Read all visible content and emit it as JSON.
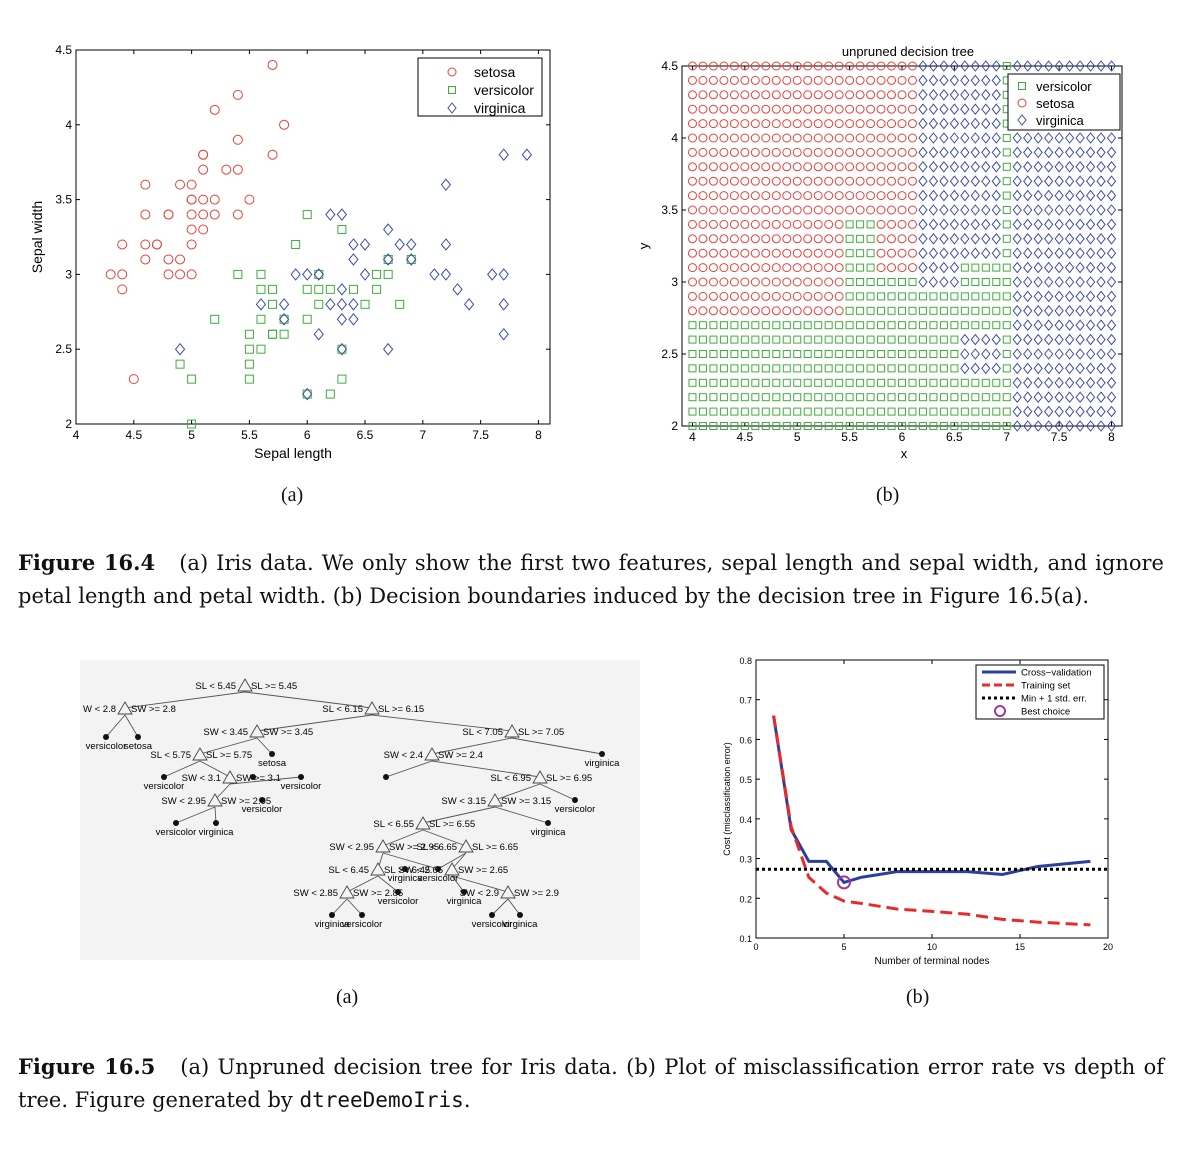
{
  "figure_16_4": {
    "panel_a": {
      "sublabel": "(a)",
      "legend": [
        "setosa",
        "versicolor",
        "virginica"
      ]
    },
    "panel_b": {
      "sublabel": "(b)",
      "legend": [
        "versicolor",
        "setosa",
        "virginica"
      ]
    },
    "caption": {
      "label": "Figure 16.4",
      "text": "(a) Iris data. We only show the first two features, sepal length and sepal width, and ignore petal length and petal width. (b) Decision boundaries induced by the decision tree in Figure 16.5(a)."
    }
  },
  "figure_16_5": {
    "panel_a": {
      "sublabel": "(a)",
      "tree_labels": {
        "n1_left": "SL < 5.45",
        "n1_right": "SL >= 5.45",
        "n2_left": "W < 2.8",
        "n2_right": "SW >= 2.8",
        "n2_leaves": [
          "versicolor",
          "setosa"
        ],
        "n3_left": "SL < 6.15",
        "n3_right": "SL >= 6.15",
        "n4_left": "SW < 3.45",
        "n4_right": "SW >= 3.45",
        "n5_left": "SL < 7.05",
        "n5_right": "SL >= 7.05",
        "n6_left": "SL < 5.75",
        "n6_right": "SL >= 5.75",
        "n7_left": "SW < 2.4",
        "n7_right": "SW >= 2.4",
        "n8_left": "SW < 3.1",
        "n8_right": "SW >= 3.1",
        "n9_left": "SL < 6.95",
        "n9_right": "SL >= 6.95",
        "n10_left": "SW < 2.95",
        "n10_right": "SW >= 2.95",
        "n11_left": "SW < 3.15",
        "n11_right": "SW >= 3.15",
        "n12_left": "SL < 6.55",
        "n12_right": "SL >= 6.55",
        "n13_left": "SW < 2.95",
        "n13_right": "SW >= 2.95",
        "n14_left": "SL < 6.65",
        "n14_right": "SL >= 6.65",
        "n15_left": "SL < 6.45",
        "n15_right": "SL >= 6.45",
        "n16_left": "SW < 2.65",
        "n16_right": "SW >= 2.65",
        "n17_left": "SW < 2.85",
        "n17_right": "SW >= 2.85",
        "n18_left": "SW < 2.9",
        "n18_right": "SW >= 2.9",
        "leaf_setosa": "setosa",
        "leaf_virginica": "virginica",
        "leaf_versicolor": "versicolor"
      }
    },
    "panel_b": {
      "sublabel": "(b)"
    },
    "caption": {
      "label": "Figure 16.5",
      "text_before": "(a) Unpruned decision tree for Iris data. (b) Plot of misclassification error rate vs depth of tree. Figure generated by ",
      "code": "dtreeDemoIris",
      "text_after": "."
    }
  },
  "chart_data": [
    {
      "type": "scatter",
      "title": "",
      "xlabel": "Sepal length",
      "ylabel": "Sepal width",
      "xlim": [
        4,
        8.1
      ],
      "ylim": [
        2,
        4.5
      ],
      "xticks": [
        "4",
        "4.5",
        "5",
        "5.5",
        "6",
        "6.5",
        "7",
        "7.5",
        "8"
      ],
      "yticks": [
        "2",
        "2.5",
        "3",
        "3.5",
        "4",
        "4.5"
      ],
      "grid": false,
      "legend_position": "top-right",
      "colors": {
        "setosa": "#e8413a",
        "versicolor": "#3fae3b",
        "virginica": "#3c4da6"
      },
      "series": [
        {
          "name": "setosa",
          "marker": "circle",
          "points": [
            [
              5.7,
              4.4
            ],
            [
              5.4,
              4.2
            ],
            [
              5.2,
              4.1
            ],
            [
              5.8,
              4.0
            ],
            [
              5.4,
              3.9
            ],
            [
              5.1,
              3.8
            ],
            [
              5.7,
              3.8
            ],
            [
              5.1,
              3.8
            ],
            [
              5.1,
              3.7
            ],
            [
              5.3,
              3.7
            ],
            [
              5.4,
              3.7
            ],
            [
              4.6,
              3.6
            ],
            [
              5.0,
              3.6
            ],
            [
              4.9,
              3.6
            ],
            [
              5.1,
              3.5
            ],
            [
              5.0,
              3.5
            ],
            [
              5.2,
              3.5
            ],
            [
              5.5,
              3.5
            ],
            [
              5.0,
              3.5
            ],
            [
              4.6,
              3.4
            ],
            [
              4.8,
              3.4
            ],
            [
              5.0,
              3.4
            ],
            [
              5.4,
              3.4
            ],
            [
              5.2,
              3.4
            ],
            [
              4.8,
              3.4
            ],
            [
              5.1,
              3.4
            ],
            [
              4.4,
              3.2
            ],
            [
              4.6,
              3.2
            ],
            [
              4.7,
              3.2
            ],
            [
              5.0,
              3.3
            ],
            [
              5.1,
              3.3
            ],
            [
              5.0,
              3.2
            ],
            [
              4.9,
              3.1
            ],
            [
              4.8,
              3.1
            ],
            [
              4.6,
              3.1
            ],
            [
              4.7,
              3.2
            ],
            [
              4.3,
              3.0
            ],
            [
              4.4,
              3.0
            ],
            [
              4.8,
              3.0
            ],
            [
              4.9,
              3.0
            ],
            [
              5.0,
              3.0
            ],
            [
              4.4,
              2.9
            ],
            [
              4.5,
              2.3
            ]
          ]
        },
        {
          "name": "versicolor",
          "marker": "square",
          "points": [
            [
              6.0,
              3.4
            ],
            [
              5.9,
              3.2
            ],
            [
              6.3,
              3.3
            ],
            [
              6.7,
              3.1
            ],
            [
              6.9,
              3.1
            ],
            [
              6.6,
              3.0
            ],
            [
              6.7,
              3.0
            ],
            [
              6.1,
              3.0
            ],
            [
              5.6,
              3.0
            ],
            [
              5.4,
              3.0
            ],
            [
              6.0,
              2.9
            ],
            [
              6.1,
              2.9
            ],
            [
              6.2,
              2.9
            ],
            [
              5.7,
              2.9
            ],
            [
              6.4,
              2.9
            ],
            [
              6.6,
              2.9
            ],
            [
              5.6,
              2.9
            ],
            [
              6.1,
              2.8
            ],
            [
              5.7,
              2.8
            ],
            [
              6.5,
              2.8
            ],
            [
              6.8,
              2.8
            ],
            [
              5.8,
              2.7
            ],
            [
              5.6,
              2.7
            ],
            [
              6.0,
              2.7
            ],
            [
              6.3,
              2.5
            ],
            [
              5.7,
              2.6
            ],
            [
              5.5,
              2.6
            ],
            [
              5.8,
              2.6
            ],
            [
              5.5,
              2.5
            ],
            [
              4.9,
              2.4
            ],
            [
              5.5,
              2.4
            ],
            [
              6.2,
              2.2
            ],
            [
              6.0,
              2.2
            ],
            [
              5.0,
              2.3
            ],
            [
              5.5,
              2.3
            ],
            [
              6.3,
              2.3
            ],
            [
              5.0,
              2.0
            ],
            [
              5.2,
              2.7
            ],
            [
              5.7,
              2.6
            ],
            [
              5.6,
              2.5
            ]
          ]
        },
        {
          "name": "virginica",
          "marker": "diamond",
          "points": [
            [
              7.7,
              3.8
            ],
            [
              7.9,
              3.8
            ],
            [
              7.2,
              3.6
            ],
            [
              6.2,
              3.4
            ],
            [
              6.3,
              3.4
            ],
            [
              7.2,
              3.2
            ],
            [
              6.9,
              3.2
            ],
            [
              6.8,
              3.2
            ],
            [
              6.4,
              3.2
            ],
            [
              6.5,
              3.2
            ],
            [
              6.7,
              3.3
            ],
            [
              6.7,
              3.1
            ],
            [
              6.9,
              3.1
            ],
            [
              6.4,
              3.1
            ],
            [
              7.1,
              3.0
            ],
            [
              7.2,
              3.0
            ],
            [
              7.6,
              3.0
            ],
            [
              7.7,
              3.0
            ],
            [
              6.5,
              3.0
            ],
            [
              5.9,
              3.0
            ],
            [
              6.1,
              3.0
            ],
            [
              6.0,
              3.0
            ],
            [
              7.3,
              2.9
            ],
            [
              6.3,
              2.9
            ],
            [
              7.4,
              2.8
            ],
            [
              7.7,
              2.8
            ],
            [
              6.3,
              2.8
            ],
            [
              6.4,
              2.8
            ],
            [
              5.8,
              2.8
            ],
            [
              6.2,
              2.8
            ],
            [
              5.6,
              2.8
            ],
            [
              6.3,
              2.7
            ],
            [
              6.4,
              2.7
            ],
            [
              5.8,
              2.7
            ],
            [
              6.1,
              2.6
            ],
            [
              7.7,
              2.6
            ],
            [
              6.3,
              2.5
            ],
            [
              6.7,
              2.5
            ],
            [
              4.9,
              2.5
            ],
            [
              6.0,
              2.2
            ]
          ]
        }
      ]
    },
    {
      "type": "scatter",
      "title": "unpruned decision tree",
      "xlabel": "x",
      "ylabel": "y",
      "xlim": [
        3.9,
        8.1
      ],
      "ylim": [
        2,
        4.5
      ],
      "xticks": [
        "4",
        "4.5",
        "5",
        "5.5",
        "6",
        "6.5",
        "7",
        "7.5",
        "8"
      ],
      "yticks": [
        "2",
        "2.5",
        "3",
        "3.5",
        "4",
        "4.5"
      ],
      "grid_step": 0.1,
      "legend_position": "top-right",
      "regions_description": "class predicted at each grid point"
    },
    {
      "type": "line",
      "title": "",
      "xlabel": "Number of terminal nodes",
      "ylabel": "Cost (misclassification error)",
      "xlim": [
        0,
        20
      ],
      "ylim": [
        0.1,
        0.8
      ],
      "xticks": [
        "0",
        "5",
        "10",
        "15",
        "20"
      ],
      "yticks": [
        "0.1",
        "0.2",
        "0.3",
        "0.4",
        "0.5",
        "0.6",
        "0.7",
        "0.8"
      ],
      "legend_position": "top-right",
      "series": [
        {
          "name": "Cross−validation",
          "color": "#2b3f9e",
          "style": "solid",
          "x": [
            1,
            2,
            3,
            4,
            5,
            6,
            7,
            8,
            10,
            12,
            14,
            16,
            19
          ],
          "y": [
            0.66,
            0.373,
            0.293,
            0.293,
            0.24,
            0.253,
            0.26,
            0.267,
            0.267,
            0.267,
            0.26,
            0.28,
            0.293
          ]
        },
        {
          "name": "Training set",
          "color": "#e82a2a",
          "style": "dashed",
          "x": [
            1,
            2,
            3,
            4,
            5,
            6,
            8,
            10,
            12,
            14,
            16,
            19
          ],
          "y": [
            0.66,
            0.38,
            0.253,
            0.213,
            0.193,
            0.187,
            0.173,
            0.167,
            0.16,
            0.147,
            0.14,
            0.133
          ]
        },
        {
          "name": "Min + 1 std. err.",
          "color": "#000000",
          "style": "dotted",
          "x": [
            0,
            20
          ],
          "y": [
            0.273,
            0.273
          ]
        },
        {
          "name": "Best choice",
          "color": "#a4379a",
          "style": "marker",
          "x": [
            5
          ],
          "y": [
            0.24
          ]
        }
      ]
    }
  ]
}
